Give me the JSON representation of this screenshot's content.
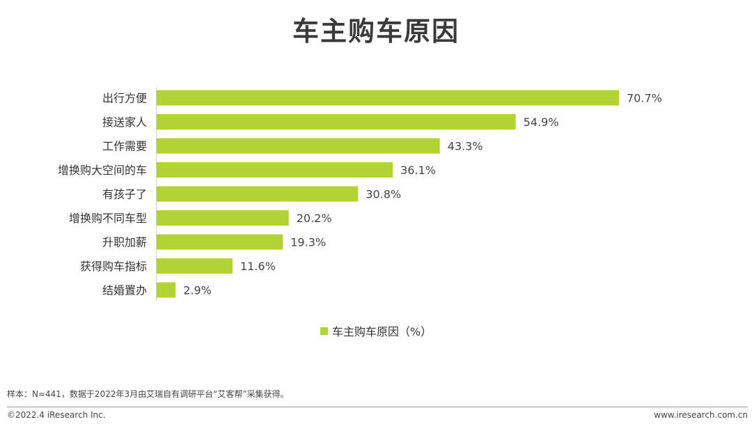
{
  "colors": {
    "bar": "#b3d335",
    "text": "#333333"
  },
  "chart_data": {
    "type": "bar",
    "orientation": "horizontal",
    "title": "车主购车原因",
    "categories": [
      "出行方便",
      "接送家人",
      "工作需要",
      "增换购大空间的车",
      "有孩子了",
      "增换购不同车型",
      "升职加薪",
      "获得购车指标",
      "结婚置办"
    ],
    "series": [
      {
        "name": "车主购车原因（%）",
        "values": [
          70.7,
          54.9,
          43.3,
          36.1,
          30.8,
          20.2,
          19.3,
          11.6,
          2.9
        ]
      }
    ],
    "value_labels": [
      "70.7%",
      "54.9%",
      "43.3%",
      "36.1%",
      "30.8%",
      "20.2%",
      "19.3%",
      "11.6%",
      "2.9%"
    ],
    "xlim": [
      0,
      70.7
    ],
    "grid": false,
    "legend_position": "bottom"
  },
  "footer": {
    "note": "样本：N=441，数据于2022年3月由艾瑞自有调研平台“艾客帮”采集获得。",
    "copyright": "©2022.4 iResearch Inc.",
    "website": "www.iresearch.com.cn"
  }
}
